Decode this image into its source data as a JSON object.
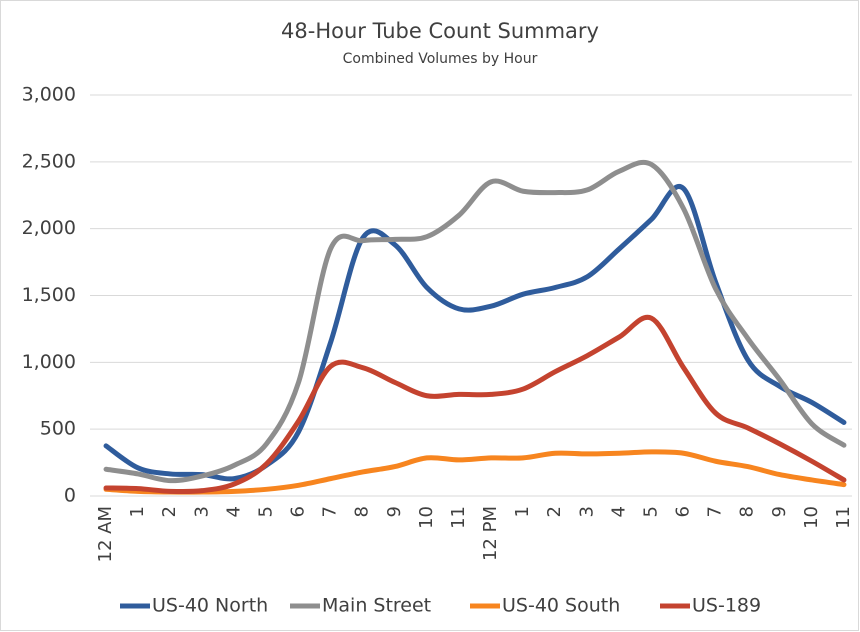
{
  "chart_data": {
    "type": "line",
    "title": "48-Hour Tube Count Summary",
    "subtitle": "Combined Volumes by Hour",
    "categories": [
      "12 AM",
      "1",
      "2",
      "3",
      "4",
      "5",
      "6",
      "7",
      "8",
      "9",
      "10",
      "11",
      "12 PM",
      "1",
      "2",
      "3",
      "4",
      "5",
      "6",
      "7",
      "8",
      "9",
      "10",
      "11"
    ],
    "series": [
      {
        "name": "US-40 North",
        "color": "#2f5c9c",
        "values": [
          375,
          210,
          165,
          160,
          130,
          230,
          480,
          1150,
          1930,
          1880,
          1560,
          1400,
          1420,
          1510,
          1560,
          1640,
          1850,
          2070,
          2300,
          1600,
          1020,
          820,
          700,
          550
        ]
      },
      {
        "name": "Main Street",
        "color": "#8e8e8e",
        "values": [
          200,
          165,
          115,
          150,
          230,
          390,
          850,
          1850,
          1910,
          1920,
          1940,
          2100,
          2350,
          2280,
          2270,
          2290,
          2430,
          2480,
          2150,
          1550,
          1180,
          870,
          540,
          380
        ]
      },
      {
        "name": "US-40 South",
        "color": "#f7851f",
        "values": [
          50,
          35,
          30,
          30,
          35,
          50,
          80,
          130,
          180,
          220,
          285,
          270,
          285,
          285,
          320,
          315,
          320,
          330,
          320,
          260,
          220,
          160,
          120,
          85
        ]
      },
      {
        "name": "US-189",
        "color": "#c4432f",
        "values": [
          60,
          55,
          35,
          40,
          90,
          240,
          560,
          970,
          960,
          850,
          750,
          760,
          760,
          800,
          930,
          1050,
          1190,
          1330,
          960,
          620,
          510,
          390,
          260,
          120
        ]
      }
    ],
    "ylim": [
      0,
      3000
    ],
    "yticks": [
      0,
      500,
      {
        "value": 1000,
        "label": "1,000"
      },
      {
        "value": 1500,
        "label": "1,500"
      },
      {
        "value": 2000,
        "label": "2,000"
      },
      {
        "value": 2500,
        "label": "2,500"
      },
      {
        "value": 3000,
        "label": "3,000"
      }
    ],
    "grid": true,
    "legend": "bottom"
  }
}
